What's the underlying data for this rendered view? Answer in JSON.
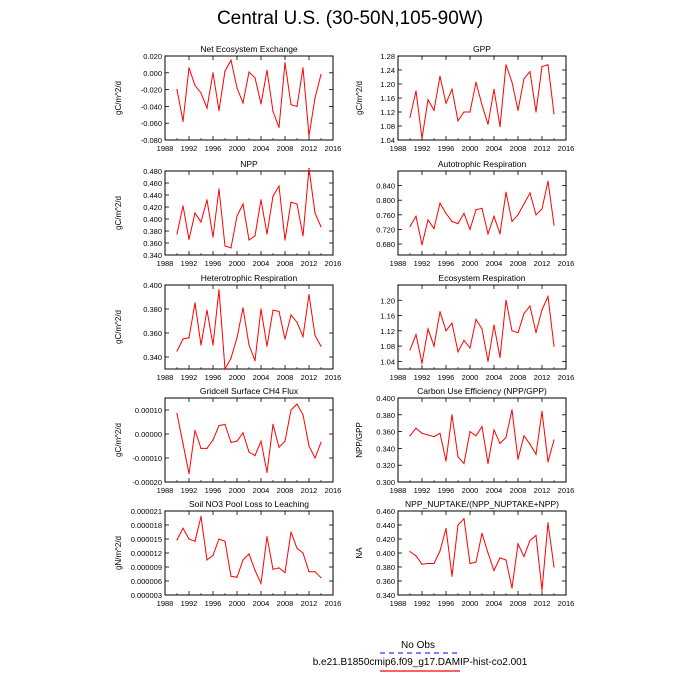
{
  "title": "Central U.S. (30-50N,105-90W)",
  "legend": {
    "items": [
      {
        "label": "No Obs",
        "color": "#3333ff",
        "style": "dashed"
      },
      {
        "label": "b.e21.B1850cmip6.f09_g17.DAMIP-hist-co2.001",
        "color": "#ff0000",
        "style": "solid"
      }
    ]
  },
  "chart_data": [
    {
      "type": "line",
      "title": "Net Ecosystem Exchange",
      "xlabel": "",
      "ylabel": "gC/m^2/d",
      "xlim": [
        1988,
        2016
      ],
      "xticks": [
        "1988",
        "1992",
        "1996",
        "2000",
        "2004",
        "2008",
        "2012",
        "2016"
      ],
      "ylim": [
        -0.08,
        0.02
      ],
      "yticks": [
        "-0.080",
        "-0.060",
        "-0.040",
        "-0.020",
        "0.000",
        "0.020"
      ],
      "x": [
        1990,
        1991,
        1992,
        1993,
        1994,
        1995,
        1996,
        1997,
        1998,
        1999,
        2000,
        2001,
        2002,
        2003,
        2004,
        2005,
        2006,
        2007,
        2008,
        2009,
        2010,
        2011,
        2012,
        2013,
        2014
      ],
      "series": [
        {
          "name": "b.e21.B1850cmip6.f09_g17.DAMIP-hist-co2.001",
          "color": "#ff0000",
          "values": [
            -0.02,
            -0.058,
            0.006,
            -0.015,
            -0.024,
            -0.042,
            0.0,
            -0.045,
            0.002,
            0.015,
            -0.018,
            -0.036,
            0.001,
            -0.006,
            -0.037,
            0.003,
            -0.046,
            -0.065,
            0.012,
            -0.038,
            -0.04,
            0.006,
            -0.075,
            -0.03,
            -0.002
          ]
        }
      ]
    },
    {
      "type": "line",
      "title": "GPP",
      "xlabel": "",
      "ylabel": "gC/m^2/d",
      "xlim": [
        1988,
        2016
      ],
      "xticks": [
        "1988",
        "1992",
        "1996",
        "2000",
        "2004",
        "2008",
        "2012",
        "2016"
      ],
      "ylim": [
        1.04,
        1.28
      ],
      "yticks": [
        "1.04",
        "1.08",
        "1.12",
        "1.16",
        "1.20",
        "1.24",
        "1.28"
      ],
      "x": [
        1990,
        1991,
        1992,
        1993,
        1994,
        1995,
        1996,
        1997,
        1998,
        1999,
        2000,
        2001,
        2002,
        2003,
        2004,
        2005,
        2006,
        2007,
        2008,
        2009,
        2010,
        2011,
        2012,
        2013,
        2014
      ],
      "series": [
        {
          "name": "b.e21.B1850cmip6.f09_g17.DAMIP-hist-co2.001",
          "color": "#ff0000",
          "values": [
            1.105,
            1.18,
            1.045,
            1.155,
            1.125,
            1.222,
            1.145,
            1.185,
            1.095,
            1.12,
            1.12,
            1.205,
            1.14,
            1.085,
            1.185,
            1.078,
            1.255,
            1.205,
            1.125,
            1.215,
            1.235,
            1.12,
            1.25,
            1.255,
            1.115
          ]
        }
      ]
    },
    {
      "type": "line",
      "title": "NPP",
      "xlabel": "",
      "ylabel": "gC/m^2/d",
      "xlim": [
        1988,
        2016
      ],
      "xticks": [
        "1988",
        "1992",
        "1996",
        "2000",
        "2004",
        "2008",
        "2012",
        "2016"
      ],
      "ylim": [
        0.34,
        0.48
      ],
      "yticks": [
        "0.340",
        "0.360",
        "0.380",
        "0.400",
        "0.420",
        "0.440",
        "0.460",
        "0.480"
      ],
      "x": [
        1990,
        1991,
        1992,
        1993,
        1994,
        1995,
        1996,
        1997,
        1998,
        1999,
        2000,
        2001,
        2002,
        2003,
        2004,
        2005,
        2006,
        2007,
        2008,
        2009,
        2010,
        2011,
        2012,
        2013,
        2014
      ],
      "series": [
        {
          "name": "b.e21.B1850cmip6.f09_g17.DAMIP-hist-co2.001",
          "color": "#ff0000",
          "values": [
            0.375,
            0.422,
            0.366,
            0.41,
            0.395,
            0.432,
            0.37,
            0.45,
            0.355,
            0.352,
            0.405,
            0.425,
            0.365,
            0.372,
            0.432,
            0.375,
            0.438,
            0.455,
            0.365,
            0.428,
            0.425,
            0.372,
            0.484,
            0.41,
            0.387
          ]
        }
      ]
    },
    {
      "type": "line",
      "title": "Autotrophic Respiration",
      "xlabel": "",
      "ylabel": "",
      "xlim": [
        1988,
        2016
      ],
      "xticks": [
        "1988",
        "1992",
        "1996",
        "2000",
        "2004",
        "2008",
        "2012",
        "2016"
      ],
      "ylim": [
        0.65,
        0.88
      ],
      "yticks": [
        "0.680",
        "0.720",
        "0.760",
        "0.800",
        "0.840"
      ],
      "x": [
        1990,
        1991,
        1992,
        1993,
        1994,
        1995,
        1996,
        1997,
        1998,
        1999,
        2000,
        2001,
        2002,
        2003,
        2004,
        2005,
        2006,
        2007,
        2008,
        2009,
        2010,
        2011,
        2012,
        2013,
        2014
      ],
      "series": [
        {
          "name": "b.e21.B1850cmip6.f09_g17.DAMIP-hist-co2.001",
          "color": "#ff0000",
          "values": [
            0.728,
            0.756,
            0.678,
            0.746,
            0.722,
            0.792,
            0.764,
            0.742,
            0.736,
            0.764,
            0.72,
            0.774,
            0.778,
            0.708,
            0.756,
            0.708,
            0.822,
            0.742,
            0.76,
            0.79,
            0.82,
            0.76,
            0.776,
            0.852,
            0.732
          ]
        }
      ]
    },
    {
      "type": "line",
      "title": "Heterotrophic Respiration",
      "xlabel": "",
      "ylabel": "gC/m^2/d",
      "xlim": [
        1988,
        2016
      ],
      "xticks": [
        "1988",
        "1992",
        "1996",
        "2000",
        "2004",
        "2008",
        "2012",
        "2016"
      ],
      "ylim": [
        0.33,
        0.4
      ],
      "yticks": [
        "0.340",
        "0.360",
        "0.380",
        "0.400"
      ],
      "x": [
        1990,
        1991,
        1992,
        1993,
        1994,
        1995,
        1996,
        1997,
        1998,
        1999,
        2000,
        2001,
        2002,
        2003,
        2004,
        2005,
        2006,
        2007,
        2008,
        2009,
        2010,
        2011,
        2012,
        2013,
        2014
      ],
      "series": [
        {
          "name": "b.e21.B1850cmip6.f09_g17.DAMIP-hist-co2.001",
          "color": "#ff0000",
          "values": [
            0.345,
            0.355,
            0.356,
            0.385,
            0.35,
            0.379,
            0.35,
            0.396,
            0.33,
            0.339,
            0.356,
            0.381,
            0.35,
            0.337,
            0.38,
            0.349,
            0.379,
            0.378,
            0.355,
            0.375,
            0.369,
            0.357,
            0.392,
            0.358,
            0.349
          ]
        }
      ]
    },
    {
      "type": "line",
      "title": "Ecosystem Respiration",
      "xlabel": "",
      "ylabel": "",
      "xlim": [
        1988,
        2016
      ],
      "xticks": [
        "1988",
        "1992",
        "1996",
        "2000",
        "2004",
        "2008",
        "2012",
        "2016"
      ],
      "ylim": [
        1.02,
        1.24
      ],
      "yticks": [
        "1.04",
        "1.08",
        "1.12",
        "1.16",
        "1.20"
      ],
      "x": [
        1990,
        1991,
        1992,
        1993,
        1994,
        1995,
        1996,
        1997,
        1998,
        1999,
        2000,
        2001,
        2002,
        2003,
        2004,
        2005,
        2006,
        2007,
        2008,
        2009,
        2010,
        2011,
        2012,
        2013,
        2014
      ],
      "series": [
        {
          "name": "b.e21.B1850cmip6.f09_g17.DAMIP-hist-co2.001",
          "color": "#ff0000",
          "values": [
            1.07,
            1.11,
            1.035,
            1.125,
            1.08,
            1.17,
            1.12,
            1.14,
            1.065,
            1.095,
            1.075,
            1.15,
            1.125,
            1.04,
            1.135,
            1.05,
            1.2,
            1.12,
            1.115,
            1.165,
            1.185,
            1.115,
            1.175,
            1.21,
            1.08
          ]
        }
      ]
    },
    {
      "type": "line",
      "title": "Gridcell Surface CH4 Flux",
      "xlabel": "",
      "ylabel": "gC/m^2/d",
      "xlim": [
        1988,
        2016
      ],
      "xticks": [
        "1988",
        "1992",
        "1996",
        "2000",
        "2004",
        "2008",
        "2012",
        "2016"
      ],
      "ylim": [
        -0.0002,
        0.00015
      ],
      "yticks": [
        "-0.00020",
        "-0.00010",
        "0.00000",
        "0.00010"
      ],
      "x": [
        1990,
        1991,
        1992,
        1993,
        1994,
        1995,
        1996,
        1997,
        1998,
        1999,
        2000,
        2001,
        2002,
        2003,
        2004,
        2005,
        2006,
        2007,
        2008,
        2009,
        2010,
        2011,
        2012,
        2013,
        2014
      ],
      "series": [
        {
          "name": "b.e21.B1850cmip6.f09_g17.DAMIP-hist-co2.001",
          "color": "#ff0000",
          "values": [
            8.5e-05,
            -4e-05,
            -0.000165,
            1.5e-05,
            -6e-05,
            -6e-05,
            -2.5e-05,
            3.5e-05,
            4e-05,
            -3.5e-05,
            -3e-05,
            5e-06,
            -7.5e-05,
            -9e-05,
            -3e-05,
            -0.00016,
            4e-05,
            -5.5e-05,
            -3e-05,
            0.0001,
            0.000125,
            8e-05,
            -5e-05,
            -0.0001,
            -3.5e-05
          ]
        }
      ]
    },
    {
      "type": "line",
      "title": "Carbon Use Efficiency (NPP/GPP)",
      "xlabel": "",
      "ylabel": "NPP/GPP",
      "xlim": [
        1988,
        2016
      ],
      "xticks": [
        "1988",
        "1992",
        "1996",
        "2000",
        "2004",
        "2008",
        "2012",
        "2016"
      ],
      "ylim": [
        0.3,
        0.4
      ],
      "yticks": [
        "0.300",
        "0.320",
        "0.340",
        "0.360",
        "0.380",
        "0.400"
      ],
      "x": [
        1990,
        1991,
        1992,
        1993,
        1994,
        1995,
        1996,
        1997,
        1998,
        1999,
        2000,
        2001,
        2002,
        2003,
        2004,
        2005,
        2006,
        2007,
        2008,
        2009,
        2010,
        2011,
        2012,
        2013,
        2014
      ],
      "series": [
        {
          "name": "b.e21.B1850cmip6.f09_g17.DAMIP-hist-co2.001",
          "color": "#ff0000",
          "values": [
            0.355,
            0.364,
            0.358,
            0.356,
            0.354,
            0.358,
            0.325,
            0.38,
            0.33,
            0.322,
            0.36,
            0.355,
            0.366,
            0.322,
            0.362,
            0.346,
            0.353,
            0.386,
            0.327,
            0.355,
            0.345,
            0.333,
            0.384,
            0.324,
            0.35
          ]
        }
      ]
    },
    {
      "type": "line",
      "title": "Soil NO3 Pool Loss to Leaching",
      "xlabel": "",
      "ylabel": "gN/m^2/d",
      "xlim": [
        1988,
        2016
      ],
      "xticks": [
        "1988",
        "1992",
        "1996",
        "2000",
        "2004",
        "2008",
        "2012",
        "2016"
      ],
      "ylim": [
        3e-06,
        2.1e-05
      ],
      "yticks": [
        "0.000003",
        "0.000006",
        "0.000009",
        "0.000012",
        "0.000015",
        "0.000018",
        "0.000021"
      ],
      "x": [
        1990,
        1991,
        1992,
        1993,
        1994,
        1995,
        1996,
        1997,
        1998,
        1999,
        2000,
        2001,
        2002,
        2003,
        2004,
        2005,
        2006,
        2007,
        2008,
        2009,
        2010,
        2011,
        2012,
        2013,
        2014
      ],
      "series": [
        {
          "name": "b.e21.B1850cmip6.f09_g17.DAMIP-hist-co2.001",
          "color": "#ff0000",
          "values": [
            1.48e-05,
            1.73e-05,
            1.5e-05,
            1.45e-05,
            1.98e-05,
            1.05e-05,
            1.15e-05,
            1.5e-05,
            1.45e-05,
            7e-06,
            6.8e-06,
            1.05e-05,
            1.18e-05,
            8.3e-06,
            5.5e-06,
            1.55e-05,
            8.5e-06,
            8.8e-06,
            7.8e-06,
            1.65e-05,
            1.3e-05,
            1.2e-05,
            8e-06,
            8e-06,
            6.7e-06
          ]
        }
      ]
    },
    {
      "type": "line",
      "title": "NPP_NUPTAKE/(NPP_NUPTAKE+NPP)",
      "xlabel": "",
      "ylabel": "NA",
      "xlim": [
        1988,
        2016
      ],
      "xticks": [
        "1988",
        "1992",
        "1996",
        "2000",
        "2004",
        "2008",
        "2012",
        "2016"
      ],
      "ylim": [
        0.34,
        0.46
      ],
      "yticks": [
        "0.340",
        "0.360",
        "0.380",
        "0.400",
        "0.420",
        "0.440",
        "0.460"
      ],
      "x": [
        1990,
        1991,
        1992,
        1993,
        1994,
        1995,
        1996,
        1997,
        1998,
        1999,
        2000,
        2001,
        2002,
        2003,
        2004,
        2005,
        2006,
        2007,
        2008,
        2009,
        2010,
        2011,
        2012,
        2013,
        2014
      ],
      "series": [
        {
          "name": "b.e21.B1850cmip6.f09_g17.DAMIP-hist-co2.001",
          "color": "#ff0000",
          "values": [
            0.402,
            0.396,
            0.384,
            0.385,
            0.385,
            0.403,
            0.435,
            0.367,
            0.44,
            0.449,
            0.385,
            0.387,
            0.428,
            0.4,
            0.375,
            0.393,
            0.39,
            0.35,
            0.413,
            0.395,
            0.418,
            0.425,
            0.347,
            0.443,
            0.38
          ]
        }
      ]
    }
  ]
}
